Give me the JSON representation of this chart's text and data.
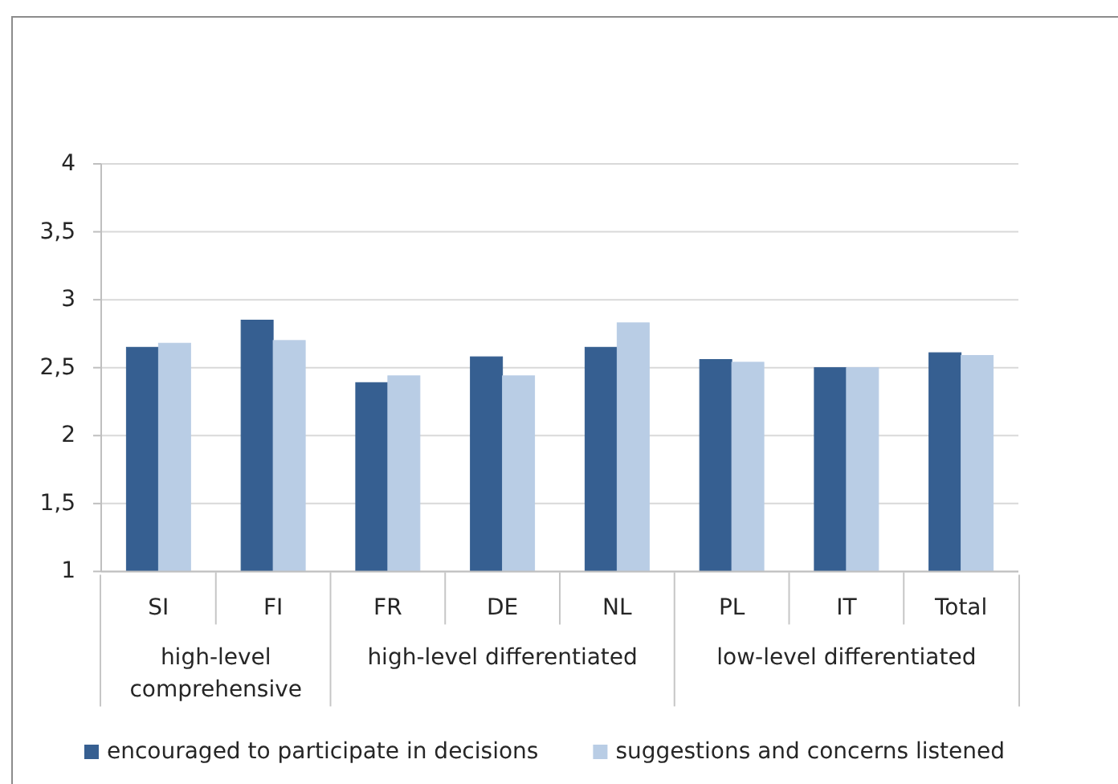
{
  "chart_data": {
    "type": "bar",
    "categories": [
      "SI",
      "FI",
      "FR",
      "DE",
      "NL",
      "PL",
      "IT",
      "Total"
    ],
    "series": [
      {
        "name": "encouraged to participate in decisions",
        "color": "#365f91",
        "values": [
          2.65,
          2.85,
          2.39,
          2.58,
          2.65,
          2.56,
          2.5,
          2.61
        ]
      },
      {
        "name": "suggestions and concerns listened",
        "color": "#b9cde5",
        "values": [
          2.68,
          2.7,
          2.44,
          2.44,
          2.83,
          2.54,
          2.5,
          2.59
        ]
      }
    ],
    "ylim": [
      1,
      4
    ],
    "yticks": [
      1,
      {
        "value": 1.5,
        "label": "1,5"
      },
      2,
      {
        "value": 2.5,
        "label": "2,5"
      },
      3,
      {
        "value": 3.5,
        "label": "3,5"
      },
      4
    ],
    "grid": "y",
    "legend": "bottom",
    "annotations": [
      "high-level comprehensive",
      "high-level differentiated",
      "low-level differentiated"
    ]
  }
}
